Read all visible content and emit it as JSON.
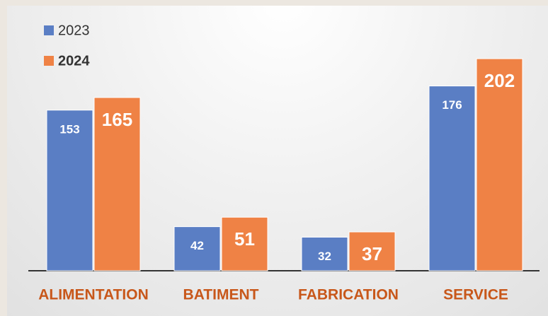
{
  "chart_data": {
    "type": "bar",
    "categories": [
      "ALIMENTATION",
      "BATIMENT",
      "FABRICATION",
      "SERVICE"
    ],
    "series": [
      {
        "name": "2023",
        "color": "#5a7ec4",
        "values": [
          153,
          42,
          32,
          176
        ]
      },
      {
        "name": "2024",
        "color": "#ef8245",
        "values": [
          165,
          51,
          37,
          202
        ]
      }
    ]
  }
}
